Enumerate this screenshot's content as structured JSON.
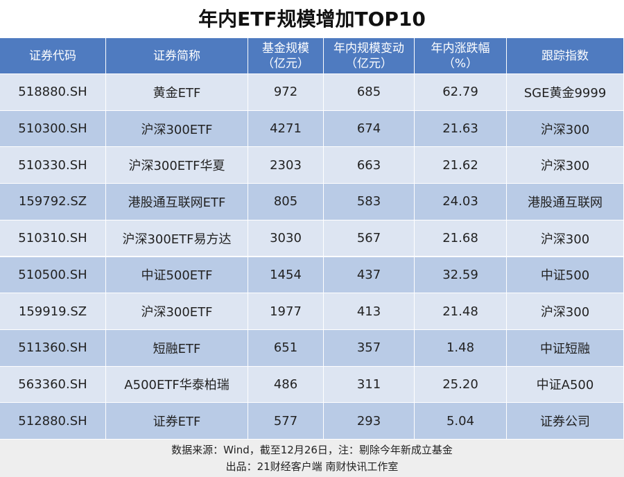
{
  "title": "年内ETF规模增加TOP10",
  "table": {
    "headers": [
      [
        "证券代码"
      ],
      [
        "证券简称"
      ],
      [
        "基金规模",
        "（亿元）"
      ],
      [
        "年内规模变动",
        "（亿元）"
      ],
      [
        "年内涨跌幅",
        "（%）"
      ],
      [
        "跟踪指数"
      ]
    ],
    "rows": [
      [
        "518880.SH",
        "黄金ETF",
        "972",
        "685",
        "62.79",
        "SGE黄金9999"
      ],
      [
        "510300.SH",
        "沪深300ETF",
        "4271",
        "674",
        "21.63",
        "沪深300"
      ],
      [
        "510330.SH",
        "沪深300ETF华夏",
        "2303",
        "663",
        "21.62",
        "沪深300"
      ],
      [
        "159792.SZ",
        "港股通互联网ETF",
        "805",
        "583",
        "24.03",
        "港股通互联网"
      ],
      [
        "510310.SH",
        "沪深300ETF易方达",
        "3030",
        "567",
        "21.68",
        "沪深300"
      ],
      [
        "510500.SH",
        "中证500ETF",
        "1454",
        "437",
        "32.59",
        "中证500"
      ],
      [
        "159919.SZ",
        "沪深300ETF",
        "1977",
        "413",
        "21.48",
        "沪深300"
      ],
      [
        "511360.SH",
        "短融ETF",
        "651",
        "357",
        "1.48",
        "中证短融"
      ],
      [
        "563360.SH",
        "A500ETF华泰柏瑞",
        "486",
        "311",
        "25.20",
        "中证A500"
      ],
      [
        "512880.SH",
        "证券ETF",
        "577",
        "293",
        "5.04",
        "证券公司"
      ]
    ]
  },
  "footer": [
    "数据来源：Wind，截至12月26日，注：剔除今年新成立基金",
    "出品：21财经客户端 南财快讯工作室"
  ]
}
